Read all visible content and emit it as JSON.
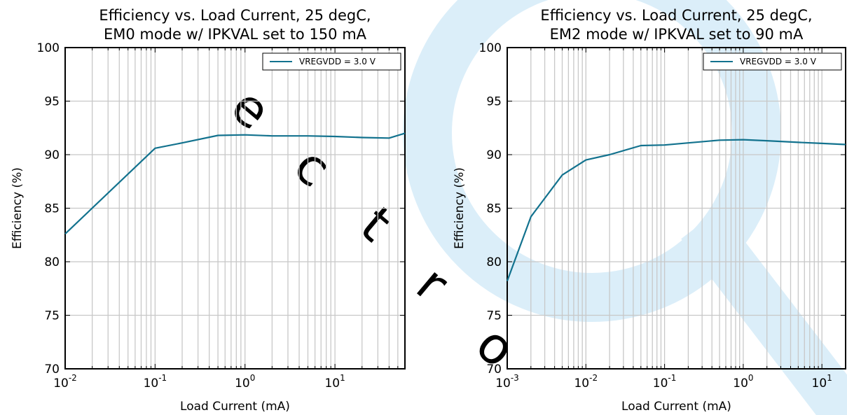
{
  "chart_data": [
    {
      "type": "line",
      "title": "Efficiency vs. Load Current, 25 degC,",
      "subtitle": "EM0 mode w/ IPKVAL set to 150 mA",
      "xlabel": "Load Current (mA)",
      "ylabel": "Efficiency (%)",
      "x_scale": "log",
      "xlim": [
        0.01,
        60
      ],
      "ylim": [
        70,
        100
      ],
      "yticks": [
        "70",
        "75",
        "80",
        "85",
        "90",
        "95",
        "100"
      ],
      "xticks": [
        {
          "base": "10",
          "exp": "-2"
        },
        {
          "base": "10",
          "exp": "-1"
        },
        {
          "base": "10",
          "exp": "0"
        },
        {
          "base": "10",
          "exp": "1"
        }
      ],
      "grid": true,
      "legend_position": "top-right",
      "series": [
        {
          "name": "VREGVDD = 3.0 V",
          "color": "#12728e",
          "x": [
            0.01,
            0.1,
            0.2,
            0.5,
            1,
            2,
            5,
            10,
            20,
            40,
            60
          ],
          "y": [
            82.6,
            90.6,
            91.1,
            91.8,
            91.85,
            91.75,
            91.75,
            91.7,
            91.6,
            91.55,
            92.0
          ]
        }
      ]
    },
    {
      "type": "line",
      "title": "Efficiency vs. Load Current, 25 degC,",
      "subtitle": "EM2 mode w/ IPKVAL set to 90 mA",
      "xlabel": "Load Current (mA)",
      "ylabel": "Efficiency (%)",
      "x_scale": "log",
      "xlim": [
        0.001,
        20
      ],
      "ylim": [
        70,
        100
      ],
      "yticks": [
        "70",
        "75",
        "80",
        "85",
        "90",
        "95",
        "100"
      ],
      "xticks": [
        {
          "base": "10",
          "exp": "-3"
        },
        {
          "base": "10",
          "exp": "-2"
        },
        {
          "base": "10",
          "exp": "-1"
        },
        {
          "base": "10",
          "exp": "0"
        },
        {
          "base": "10",
          "exp": "1"
        }
      ],
      "grid": true,
      "legend_position": "top-right",
      "series": [
        {
          "name": "VREGVDD = 3.0 V",
          "color": "#12728e",
          "x": [
            0.001,
            0.002,
            0.005,
            0.01,
            0.02,
            0.05,
            0.1,
            0.2,
            0.5,
            1,
            2,
            5,
            10,
            20
          ],
          "y": [
            78.2,
            84.2,
            88.1,
            89.5,
            90.0,
            90.85,
            90.9,
            91.1,
            91.35,
            91.4,
            91.3,
            91.15,
            91.05,
            90.95
          ]
        }
      ]
    }
  ]
}
